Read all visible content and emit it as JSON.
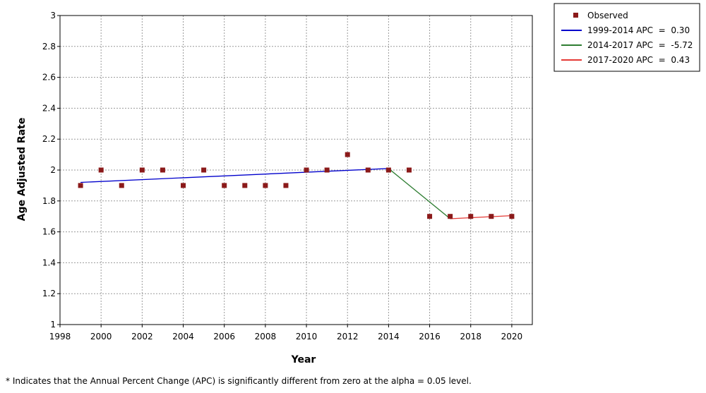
{
  "chart_data": {
    "type": "scatter",
    "xlabel": "Year",
    "ylabel": "Age Adjusted Rate",
    "xlim": [
      1998,
      2021
    ],
    "ylim": [
      1,
      3
    ],
    "x_ticks": [
      1998,
      2000,
      2002,
      2004,
      2006,
      2008,
      2010,
      2012,
      2014,
      2016,
      2018,
      2020
    ],
    "y_ticks": [
      1,
      1.2,
      1.4,
      1.6,
      1.8,
      2,
      2.2,
      2.4,
      2.6,
      2.8,
      3
    ],
    "y_tick_labels": [
      "1",
      "1.2",
      "1.4",
      "1.6",
      "1.8",
      "2",
      "2.2",
      "2.4",
      "2.6",
      "2.8",
      "3"
    ],
    "grid": true,
    "legend_position": "top-right, outside plot",
    "observed": {
      "name": "Observed",
      "color": "#8b1a1a",
      "x": [
        1999,
        2000,
        2001,
        2002,
        2003,
        2004,
        2005,
        2006,
        2007,
        2008,
        2009,
        2010,
        2011,
        2012,
        2013,
        2014,
        2015,
        2016,
        2017,
        2018,
        2019,
        2020
      ],
      "y": [
        1.9,
        2.0,
        1.9,
        2.0,
        2.0,
        1.9,
        2.0,
        1.9,
        1.9,
        1.9,
        1.9,
        2.0,
        2.0,
        2.1,
        2.0,
        2.0,
        2.0,
        1.7,
        1.7,
        1.7,
        1.7,
        1.7
      ]
    },
    "series": [
      {
        "name": "1999-2014 APC  =  0.30",
        "color": "#0000cc",
        "x": [
          1999,
          2014
        ],
        "y": [
          1.92,
          2.01
        ]
      },
      {
        "name": "2014-2017 APC  =  -5.72",
        "color": "#2e7d32",
        "x": [
          2014,
          2017
        ],
        "y": [
          2.01,
          1.685
        ]
      },
      {
        "name": "2017-2020 APC  =  0.43",
        "color": "#e53935",
        "x": [
          2017,
          2020
        ],
        "y": [
          1.685,
          1.705
        ]
      }
    ]
  },
  "footnote": "* Indicates that the Annual Percent Change (APC) is significantly different from zero at the alpha = 0.05 level."
}
